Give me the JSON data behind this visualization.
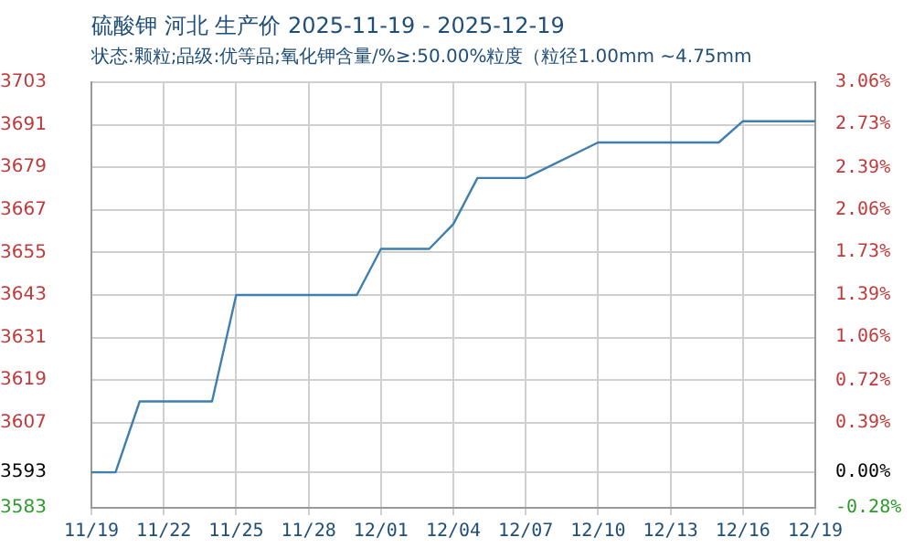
{
  "chart_data": {
    "type": "line",
    "title": "硫酸钾 河北 生产价 2025-11-19 - 2025-12-19",
    "subtitle": "状态:颗粒;品级:优等品;氧化钾含量/%≥:50.00%粒度（粒径1.00mm ~4.75mm",
    "x": [
      "2025-11-19",
      "2025-11-20",
      "2025-11-21",
      "2025-11-24",
      "2025-11-25",
      "2025-11-30",
      "2025-12-01",
      "2025-12-03",
      "2025-12-04",
      "2025-12-05",
      "2025-12-07",
      "2025-12-10",
      "2025-12-15",
      "2025-12-16",
      "2025-12-19"
    ],
    "series": [
      {
        "color": "#3f7fae",
        "values": [
          3593,
          3593,
          3613,
          3613,
          3643,
          3643,
          3656,
          3656,
          3663,
          3676,
          3676,
          3686,
          3686,
          3692,
          3692
        ]
      }
    ],
    "xlim": [
      "2025-11-19",
      "2025-12-19"
    ],
    "xticks": [
      {
        "value": "2025-11-19",
        "label": "11/19"
      },
      {
        "value": "2025-11-22",
        "label": "11/22"
      },
      {
        "value": "2025-11-25",
        "label": "11/25"
      },
      {
        "value": "2025-11-28",
        "label": "11/28"
      },
      {
        "value": "2025-12-01",
        "label": "12/01"
      },
      {
        "value": "2025-12-04",
        "label": "12/04"
      },
      {
        "value": "2025-12-07",
        "label": "12/07"
      },
      {
        "value": "2025-12-10",
        "label": "12/10"
      },
      {
        "value": "2025-12-13",
        "label": "12/13"
      },
      {
        "value": "2025-12-16",
        "label": "12/16"
      },
      {
        "value": "2025-12-19",
        "label": "12/19"
      }
    ],
    "ylim": [
      3583,
      3703
    ],
    "yticks": [
      3583,
      3593,
      3607,
      3619,
      3631,
      3643,
      3655,
      3667,
      3679,
      3691,
      3703
    ],
    "y2lim": [
      -0.28,
      3.06
    ],
    "y2ticks": [
      {
        "value": -0.28,
        "label": "-0.28%"
      },
      {
        "value": 0,
        "label": "0.00%"
      },
      {
        "value": 0.39,
        "label": "0.39%"
      },
      {
        "value": 0.72,
        "label": "0.72%"
      },
      {
        "value": 1.06,
        "label": "1.06%"
      },
      {
        "value": 1.39,
        "label": "1.39%"
      },
      {
        "value": 1.73,
        "label": "1.73%"
      },
      {
        "value": 2.06,
        "label": "2.06%"
      },
      {
        "value": 2.39,
        "label": "2.39%"
      },
      {
        "value": 2.73,
        "label": "2.73%"
      },
      {
        "value": 3.06,
        "label": "3.06%"
      }
    ],
    "grid": true,
    "legend": false,
    "marker": "none",
    "line_style": "solid"
  }
}
